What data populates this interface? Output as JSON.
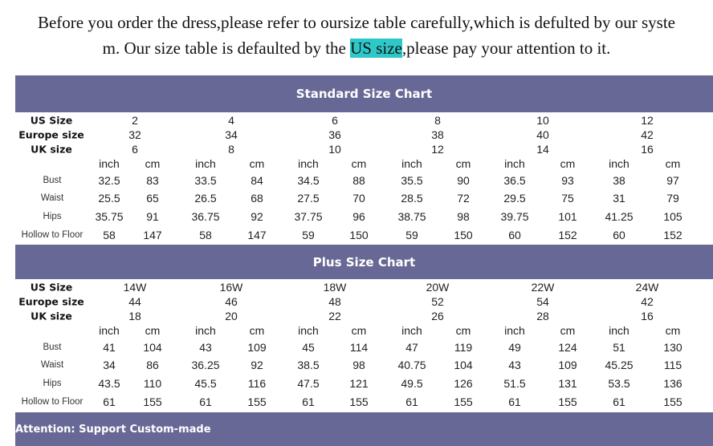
{
  "intro": {
    "line1": "Before you order the dress,please refer to oursize table carefully,which is defulted by our syste",
    "line2_before": "m. Our size table is defaulted by the ",
    "line2_highlight": "US size",
    "line2_after": ",please pay your attention to it.",
    "highlight_color": "#2ec8c8"
  },
  "colors": {
    "banner": "#686896"
  },
  "tables": [
    {
      "title": "Standard Size Chart",
      "row_labels": {
        "us": "US Size",
        "eu": "Europe size",
        "uk": "UK size"
      },
      "us": [
        "2",
        "4",
        "6",
        "8",
        "10",
        "12"
      ],
      "eu": [
        "32",
        "34",
        "36",
        "38",
        "40",
        "42"
      ],
      "uk": [
        "6",
        "8",
        "10",
        "12",
        "14",
        "16"
      ],
      "units": [
        "inch",
        "cm"
      ],
      "measures": [
        {
          "label": "Bust",
          "values": [
            "32.5",
            "83",
            "33.5",
            "84",
            "34.5",
            "88",
            "35.5",
            "90",
            "36.5",
            "93",
            "38",
            "97"
          ]
        },
        {
          "label": "Waist",
          "values": [
            "25.5",
            "65",
            "26.5",
            "68",
            "27.5",
            "70",
            "28.5",
            "72",
            "29.5",
            "75",
            "31",
            "79"
          ]
        },
        {
          "label": "Hips",
          "values": [
            "35.75",
            "91",
            "36.75",
            "92",
            "37.75",
            "96",
            "38.75",
            "98",
            "39.75",
            "101",
            "41.25",
            "105"
          ]
        },
        {
          "label": "Hollow to Floor",
          "values": [
            "58",
            "147",
            "58",
            "147",
            "59",
            "150",
            "59",
            "150",
            "60",
            "152",
            "60",
            "152"
          ]
        }
      ]
    },
    {
      "title": "Plus Size Chart",
      "row_labels": {
        "us": "US Size",
        "eu": "Europe size",
        "uk": "UK size"
      },
      "us": [
        "14W",
        "16W",
        "18W",
        "20W",
        "22W",
        "24W"
      ],
      "eu": [
        "44",
        "46",
        "48",
        "52",
        "54",
        "42"
      ],
      "uk": [
        "18",
        "20",
        "22",
        "26",
        "28",
        "16"
      ],
      "units": [
        "inch",
        "cm"
      ],
      "measures": [
        {
          "label": "Bust",
          "values": [
            "41",
            "104",
            "43",
            "109",
            "45",
            "114",
            "47",
            "119",
            "49",
            "124",
            "51",
            "130"
          ]
        },
        {
          "label": "Waist",
          "values": [
            "34",
            "86",
            "36.25",
            "92",
            "38.5",
            "98",
            "40.75",
            "104",
            "43",
            "109",
            "45.25",
            "115"
          ]
        },
        {
          "label": "Hips",
          "values": [
            "43.5",
            "110",
            "45.5",
            "116",
            "47.5",
            "121",
            "49.5",
            "126",
            "51.5",
            "131",
            "53.5",
            "136"
          ]
        },
        {
          "label": "Hollow to Floor",
          "values": [
            "61",
            "155",
            "61",
            "155",
            "61",
            "155",
            "61",
            "155",
            "61",
            "155",
            "61",
            "155"
          ]
        }
      ]
    }
  ],
  "footer": {
    "attention": "Attention: Support Custom-made"
  }
}
